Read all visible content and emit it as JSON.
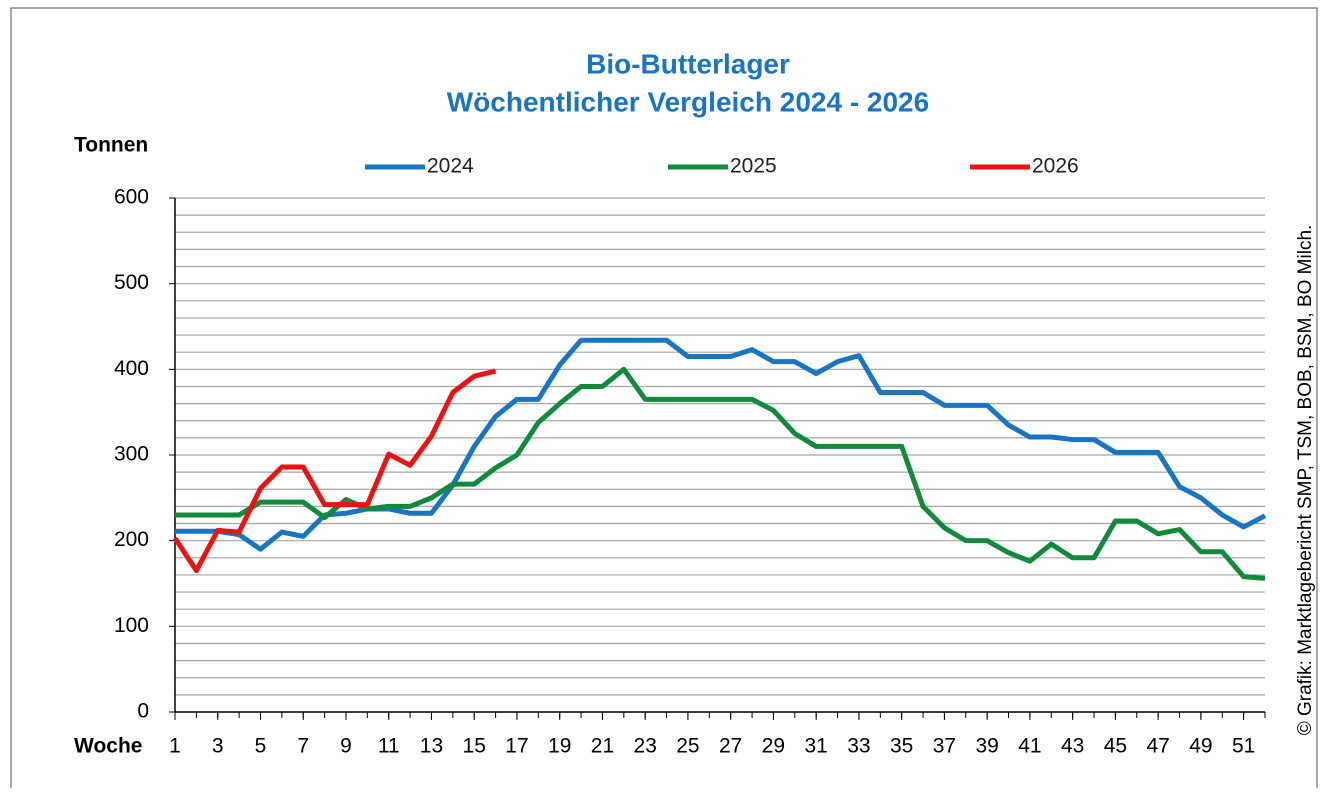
{
  "chart_data": {
    "type": "line",
    "title": "Bio-Butterlager",
    "subtitle": "Wöchentlicher Vergleich 2024 - 2026",
    "ylabel": "Tonnen",
    "xlabel": "Woche",
    "source": "© Grafik: Marktlagebericht SMP, TSM, BOB, BSM, BO Milch.",
    "x": [
      1,
      2,
      3,
      4,
      5,
      6,
      7,
      8,
      9,
      10,
      11,
      12,
      13,
      14,
      15,
      16,
      17,
      18,
      19,
      20,
      21,
      22,
      23,
      24,
      25,
      26,
      27,
      28,
      29,
      30,
      31,
      32,
      33,
      34,
      35,
      36,
      37,
      38,
      39,
      40,
      41,
      42,
      43,
      44,
      45,
      46,
      47,
      48,
      49,
      50,
      51,
      52
    ],
    "xlim": [
      1,
      52
    ],
    "xticks": [
      1,
      3,
      5,
      7,
      9,
      11,
      13,
      15,
      17,
      19,
      21,
      23,
      25,
      27,
      29,
      31,
      33,
      35,
      37,
      39,
      41,
      43,
      45,
      47,
      49,
      51
    ],
    "ylim": [
      0,
      600
    ],
    "yticks": [
      0,
      100,
      200,
      300,
      400,
      500,
      600
    ],
    "minor_yticks": [
      20,
      40,
      60,
      80,
      120,
      140,
      160,
      180,
      220,
      240,
      260,
      280,
      320,
      340,
      360,
      380,
      420,
      440,
      460,
      480,
      520,
      540,
      560,
      580
    ],
    "grid": true,
    "legend": "top",
    "series": [
      {
        "name": "2024",
        "color": "#1a74c4",
        "values": [
          211,
          211,
          211,
          207,
          190,
          210,
          205,
          230,
          232,
          237,
          237,
          232,
          232,
          265,
          310,
          345,
          365,
          365,
          405,
          434,
          434,
          434,
          434,
          434,
          415,
          415,
          415,
          423,
          409,
          409,
          395,
          409,
          416,
          373,
          373,
          373,
          358,
          358,
          358,
          335,
          321,
          321,
          318,
          318,
          303,
          303,
          303,
          263,
          250,
          230,
          216,
          229
        ]
      },
      {
        "name": "2025",
        "color": "#118a3c",
        "values": [
          230,
          230,
          230,
          230,
          245,
          245,
          245,
          227,
          248,
          237,
          240,
          240,
          250,
          266,
          266,
          285,
          300,
          338,
          360,
          380,
          380,
          400,
          365,
          365,
          365,
          365,
          365,
          365,
          352,
          325,
          310,
          310,
          310,
          310,
          310,
          240,
          215,
          200,
          200,
          186,
          176,
          196,
          180,
          180,
          223,
          223,
          208,
          213,
          187,
          187,
          158,
          156
        ]
      },
      {
        "name": "2026",
        "color": "#ee1111",
        "values": [
          203,
          165,
          212,
          210,
          261,
          286,
          286,
          242,
          242,
          242,
          301,
          288,
          322,
          373,
          392,
          398,
          null,
          null,
          null,
          null,
          null,
          null,
          null,
          null,
          null,
          null,
          null,
          null,
          null,
          null,
          null,
          null,
          null,
          null,
          null,
          null,
          null,
          null,
          null,
          null,
          null,
          null,
          null,
          null,
          null,
          null,
          null,
          null,
          null,
          null,
          null,
          null
        ]
      }
    ]
  }
}
